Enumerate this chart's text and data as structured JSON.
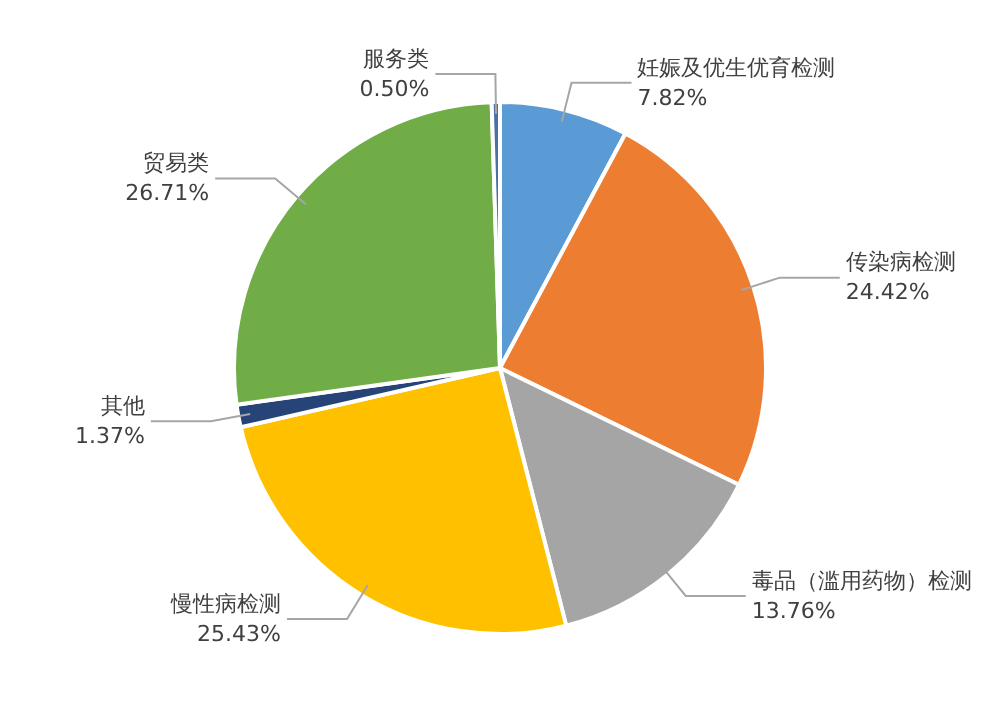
{
  "chart_data": {
    "type": "pie",
    "categories": [
      "妊娠及优生优育检测",
      "传染病检测",
      "毒品（滥用药物）检测",
      "慢性病检测",
      "其他",
      "贸易类",
      "服务类"
    ],
    "values": [
      7.82,
      24.42,
      13.76,
      25.43,
      1.37,
      26.71,
      0.5
    ],
    "value_labels": [
      "7.82%",
      "24.42%",
      "13.76%",
      "25.43%",
      "1.37%",
      "26.71%",
      "0.50%"
    ],
    "colors": [
      "#5b9bd5",
      "#ed7d31",
      "#a5a5a5",
      "#ffc000",
      "#264478",
      "#70ad47",
      "#4a6fa5"
    ],
    "legend": false
  }
}
